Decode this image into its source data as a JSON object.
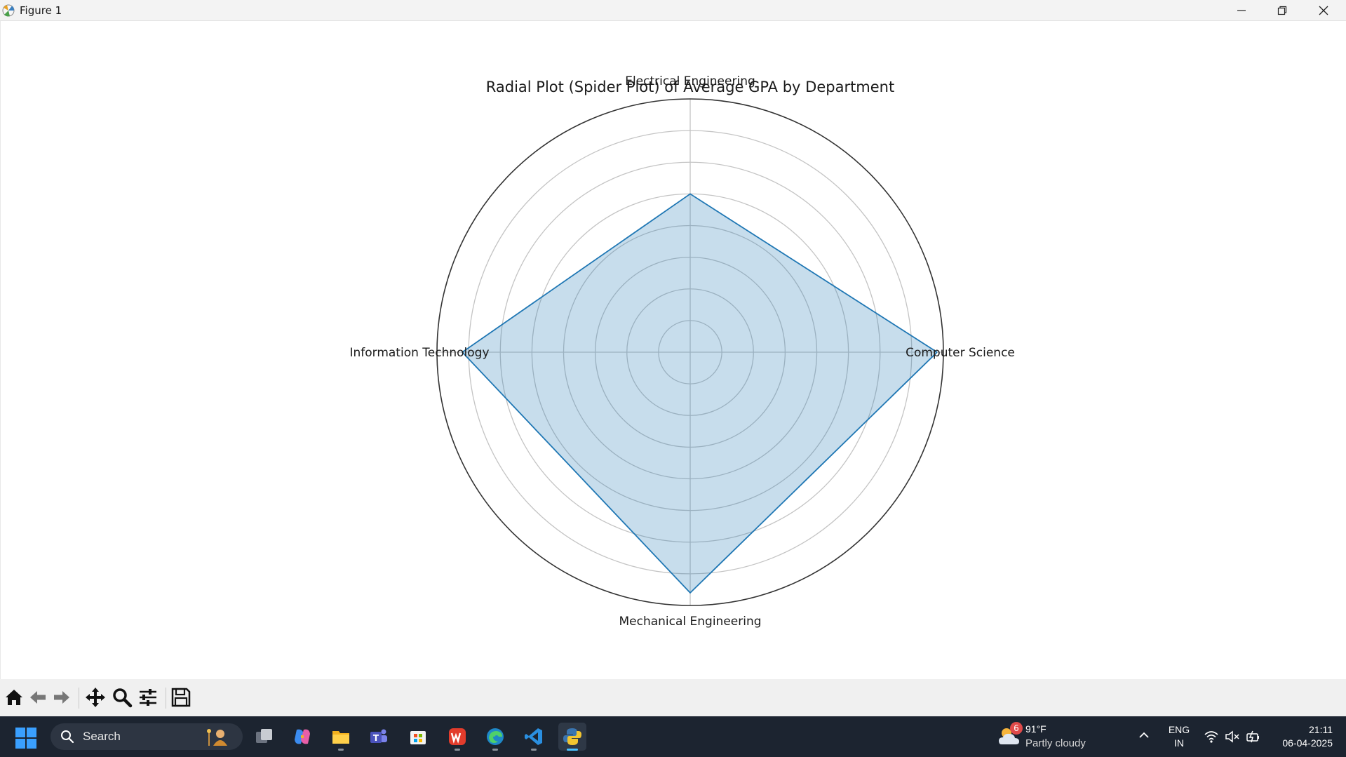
{
  "window": {
    "title": "Figure 1",
    "controls": [
      "minimize",
      "restore",
      "close"
    ]
  },
  "chart_data": {
    "type": "radar",
    "title": "Radial Plot (Spider Plot) of Average GPA by Department",
    "categories": [
      "Computer Science",
      "Electrical Engineering",
      "Information Technology",
      "Mechanical Engineering"
    ],
    "values": [
      3.9,
      2.5,
      3.6,
      3.8
    ],
    "rmax": 4.0,
    "grid_rings": [
      0.5,
      1.0,
      1.5,
      2.0,
      2.5,
      3.0,
      3.5
    ],
    "radial_tick_labels_shown": false,
    "series_color": "#1f77b4",
    "fill_color": "#1f77b4",
    "fill_alpha": 0.25
  },
  "toolbar": {
    "buttons": [
      {
        "name": "home-icon",
        "label": "Home"
      },
      {
        "name": "back-arrow-icon",
        "label": "Back"
      },
      {
        "name": "forward-arrow-icon",
        "label": "Forward"
      },
      {
        "name": "pan-icon",
        "label": "Pan"
      },
      {
        "name": "zoom-icon",
        "label": "Zoom"
      },
      {
        "name": "subplots-config-icon",
        "label": "Configure subplots"
      },
      {
        "name": "save-icon",
        "label": "Save"
      }
    ]
  },
  "taskbar": {
    "search_placeholder": "Search",
    "apps": [
      "task-view",
      "copilot",
      "file-explorer",
      "teams",
      "microsoft-store",
      "wps-office",
      "edge",
      "vscode",
      "python"
    ],
    "weather": {
      "badge": "6",
      "temp": "91°F",
      "condition": "Partly cloudy"
    },
    "language": {
      "line1": "ENG",
      "line2": "IN"
    },
    "clock": {
      "time": "21:11",
      "date": "06-04-2025"
    }
  }
}
